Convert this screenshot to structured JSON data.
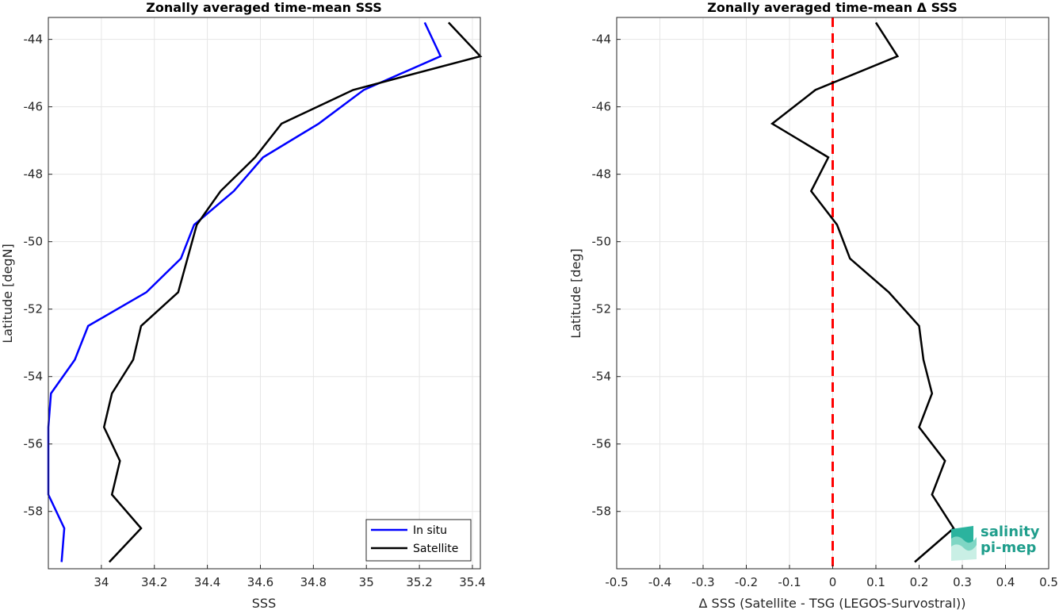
{
  "chart_data": [
    {
      "type": "line",
      "title": "Zonally averaged time-mean SSS",
      "xlabel": "SSS",
      "ylabel": "Latitude [degN]",
      "xlim": [
        33.8,
        35.43
      ],
      "ylim": [
        -59.7,
        -43.35
      ],
      "xticks": [
        34,
        34.2,
        34.4,
        34.6,
        34.8,
        35,
        35.2,
        35.4
      ],
      "xtick_labels": [
        "34",
        "34.2",
        "34.4",
        "34.6",
        "34.8",
        "35",
        "35.2",
        "35.4"
      ],
      "yticks": [
        -58,
        -56,
        -54,
        -52,
        -50,
        -48,
        -46,
        -44
      ],
      "ytick_labels": [
        "-58",
        "-56",
        "-54",
        "-52",
        "-50",
        "-48",
        "-46",
        "-44"
      ],
      "grid": true,
      "legend_position": "bottom-right",
      "series": [
        {
          "name": "In situ",
          "color": "#0000ff",
          "x": [
            35.22,
            35.28,
            34.99,
            34.82,
            34.61,
            34.5,
            34.35,
            34.3,
            34.17,
            33.95,
            33.9,
            33.81,
            33.8,
            33.8,
            33.86,
            33.85
          ],
          "y": [
            -43.5,
            -44.5,
            -45.5,
            -46.5,
            -47.5,
            -48.5,
            -49.5,
            -50.5,
            -51.5,
            -52.5,
            -53.5,
            -54.5,
            -55.5,
            -57.5,
            -58.5,
            -59.5
          ]
        },
        {
          "name": "Satellite",
          "color": "#000000",
          "x": [
            35.31,
            35.43,
            34.95,
            34.68,
            34.58,
            34.45,
            34.36,
            34.29,
            34.15,
            34.12,
            34.04,
            34.01,
            34.07,
            34.04,
            34.15,
            34.03
          ],
          "y": [
            -43.5,
            -44.5,
            -45.5,
            -46.5,
            -47.5,
            -48.5,
            -49.5,
            -51.5,
            -52.5,
            -53.5,
            -54.5,
            -55.5,
            -56.5,
            -57.5,
            -58.5,
            -59.5
          ]
        }
      ]
    },
    {
      "type": "line",
      "title": "Zonally averaged time-mean Δ SSS",
      "xlabel": "Δ SSS (Satellite - TSG (LEGOS-Survostral))",
      "ylabel": "Latitude [deg]",
      "xlim": [
        -0.5,
        0.5
      ],
      "ylim": [
        -59.7,
        -43.35
      ],
      "xticks": [
        -0.5,
        -0.4,
        -0.3,
        -0.2,
        -0.1,
        0,
        0.1,
        0.2,
        0.3,
        0.4,
        0.5
      ],
      "xtick_labels": [
        "-0.5",
        "-0.4",
        "-0.3",
        "-0.2",
        "-0.1",
        "0",
        "0.1",
        "0.2",
        "0.3",
        "0.4",
        "0.5"
      ],
      "yticks": [
        -58,
        -56,
        -54,
        -52,
        -50,
        -48,
        -46,
        -44
      ],
      "ytick_labels": [
        "-58",
        "-56",
        "-54",
        "-52",
        "-50",
        "-48",
        "-46",
        "-44"
      ],
      "grid": true,
      "zero_line": {
        "x": 0,
        "color": "#ff0000",
        "style": "dashed"
      },
      "series": [
        {
          "color": "#000000",
          "x": [
            0.1,
            0.15,
            -0.04,
            -0.14,
            -0.01,
            -0.05,
            0.01,
            0.04,
            0.13,
            0.2,
            0.21,
            0.23,
            0.2,
            0.26,
            0.23,
            0.28,
            0.19
          ],
          "y": [
            -43.5,
            -44.5,
            -45.5,
            -46.5,
            -47.5,
            -48.5,
            -49.5,
            -50.5,
            -51.5,
            -52.5,
            -53.5,
            -54.5,
            -55.5,
            -56.5,
            -57.5,
            -58.5,
            -59.5
          ]
        }
      ]
    }
  ],
  "logo": {
    "line1": "salinity",
    "line2": "pi-mep",
    "color": "#1f9e8c"
  }
}
